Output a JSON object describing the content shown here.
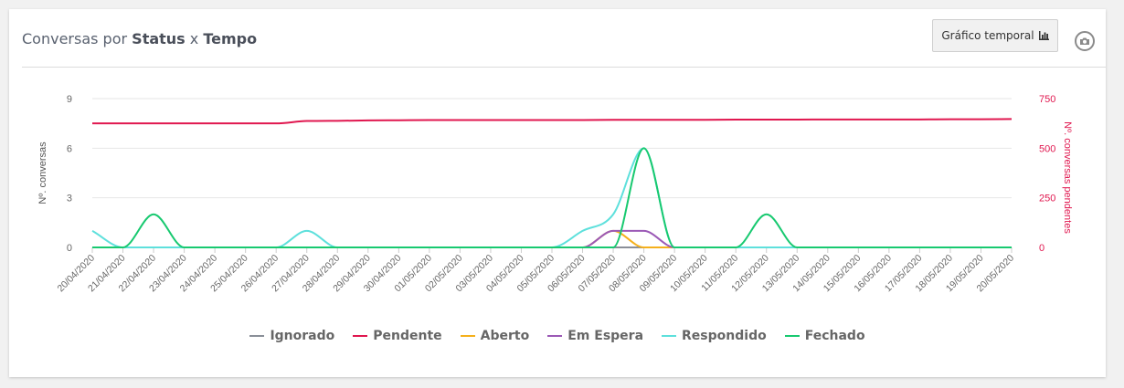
{
  "header": {
    "title_prefix": "Conversas por ",
    "title_status": "Status",
    "title_x": " x ",
    "title_tempo": "Tempo",
    "temporal_button": "Gráfico temporal",
    "temporal_icon": "bar-chart-icon",
    "camera_icon": "camera-icon"
  },
  "chart_data": {
    "type": "line",
    "x": [
      "20/04/2020",
      "21/04/2020",
      "22/04/2020",
      "23/04/2020",
      "24/04/2020",
      "25/04/2020",
      "26/04/2020",
      "27/04/2020",
      "28/04/2020",
      "29/04/2020",
      "30/04/2020",
      "01/05/2020",
      "02/05/2020",
      "03/05/2020",
      "04/05/2020",
      "05/05/2020",
      "06/05/2020",
      "07/05/2020",
      "08/05/2020",
      "09/05/2020",
      "10/05/2020",
      "11/05/2020",
      "12/05/2020",
      "13/05/2020",
      "14/05/2020",
      "15/05/2020",
      "16/05/2020",
      "17/05/2020",
      "18/05/2020",
      "19/05/2020",
      "20/05/2020"
    ],
    "ylabel_left": "Nº. conversas",
    "ylabel_right": "Nº. conversas pendentes",
    "ylim_left": [
      0,
      9
    ],
    "yticks_left": [
      0,
      3,
      6,
      9
    ],
    "ylim_right": [
      0,
      750
    ],
    "yticks_right": [
      0,
      250,
      500,
      750
    ],
    "grid": true,
    "legend_position": "bottom",
    "series": [
      {
        "name": "Ignorado",
        "color": "#8a8f98",
        "axis": "left",
        "values": [
          0,
          0,
          0,
          0,
          0,
          0,
          0,
          0,
          0,
          0,
          0,
          0,
          0,
          0,
          0,
          0,
          0,
          0,
          0,
          0,
          0,
          0,
          0,
          0,
          0,
          0,
          0,
          0,
          0,
          0,
          0
        ]
      },
      {
        "name": "Pendente",
        "color": "#e0174f",
        "axis": "right",
        "values": [
          625,
          625,
          625,
          625,
          625,
          625,
          625,
          637,
          638,
          640,
          641,
          642,
          642,
          642,
          642,
          642,
          642,
          643,
          643,
          643,
          643,
          644,
          644,
          644,
          645,
          645,
          645,
          645,
          646,
          646,
          647
        ]
      },
      {
        "name": "Aberto",
        "color": "#f5b01c",
        "axis": "left",
        "values": [
          0,
          0,
          0,
          0,
          0,
          0,
          0,
          0,
          0,
          0,
          0,
          0,
          0,
          0,
          0,
          0,
          0,
          1,
          0,
          0,
          0,
          0,
          0,
          0,
          0,
          0,
          0,
          0,
          0,
          0,
          0
        ]
      },
      {
        "name": "Em Espera",
        "color": "#9b59b6",
        "axis": "left",
        "values": [
          0,
          0,
          0,
          0,
          0,
          0,
          0,
          0,
          0,
          0,
          0,
          0,
          0,
          0,
          0,
          0,
          0,
          1,
          1,
          0,
          0,
          0,
          0,
          0,
          0,
          0,
          0,
          0,
          0,
          0,
          0
        ]
      },
      {
        "name": "Respondido",
        "color": "#5ee0dc",
        "axis": "left",
        "values": [
          1,
          0,
          0,
          0,
          0,
          0,
          0,
          1,
          0,
          0,
          0,
          0,
          0,
          0,
          0,
          0,
          1,
          2,
          6,
          0,
          0,
          0,
          0,
          0,
          0,
          0,
          0,
          0,
          0,
          0,
          0
        ]
      },
      {
        "name": "Fechado",
        "color": "#18c970",
        "axis": "left",
        "values": [
          0,
          0,
          2,
          0,
          0,
          0,
          0,
          0,
          0,
          0,
          0,
          0,
          0,
          0,
          0,
          0,
          0,
          0,
          6,
          0,
          0,
          0,
          2,
          0,
          0,
          0,
          0,
          0,
          0,
          0,
          0
        ]
      }
    ]
  }
}
